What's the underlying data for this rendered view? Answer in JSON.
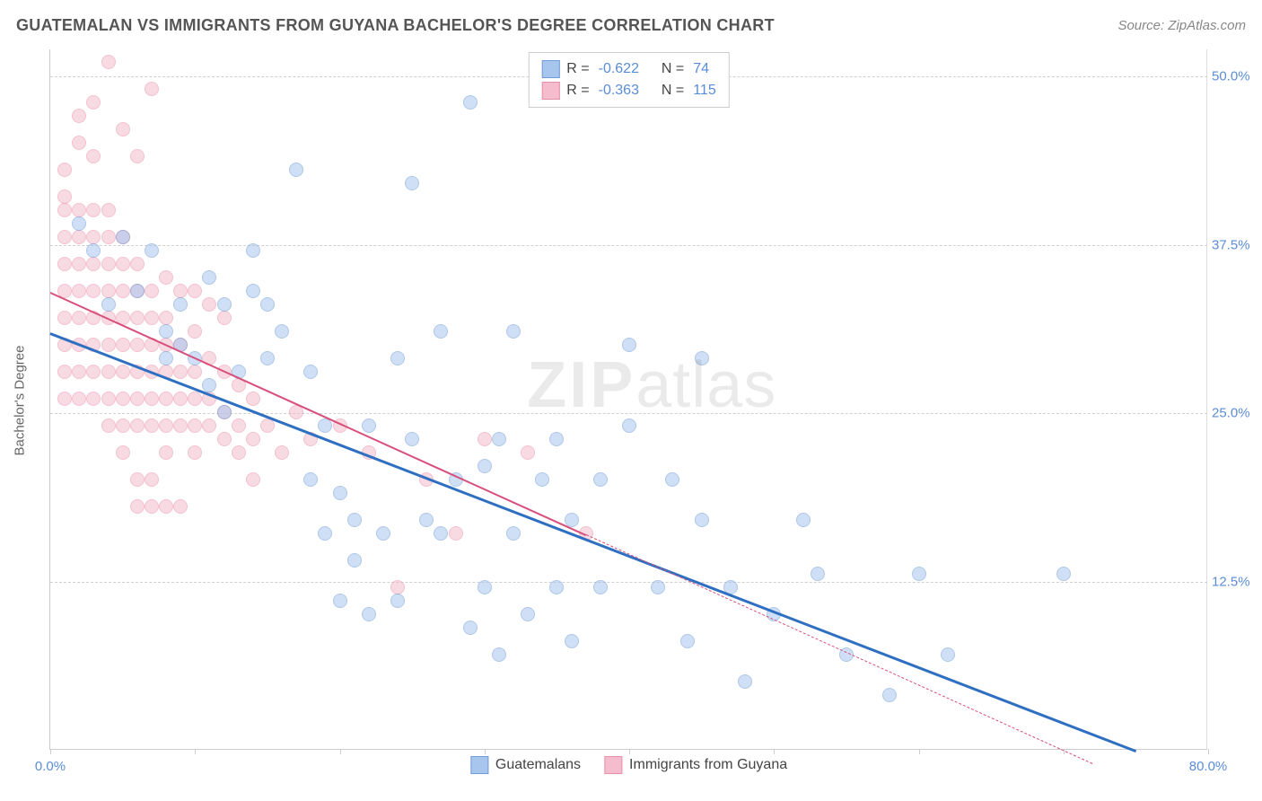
{
  "header": {
    "title": "GUATEMALAN VS IMMIGRANTS FROM GUYANA BACHELOR'S DEGREE CORRELATION CHART",
    "source": "Source: ZipAtlas.com"
  },
  "chart": {
    "type": "scatter",
    "ylabel": "Bachelor's Degree",
    "xlim": [
      0,
      80
    ],
    "ylim": [
      0,
      52
    ],
    "xtick_positions": [
      0,
      10,
      20,
      30,
      40,
      50,
      60,
      70,
      80
    ],
    "xtick_labels": {
      "0": "0.0%",
      "80": "80.0%"
    },
    "ytick_positions": [
      12.5,
      25.0,
      37.5,
      50.0
    ],
    "ytick_labels": [
      "12.5%",
      "25.0%",
      "37.5%",
      "50.0%"
    ],
    "grid_color": "#d0d0d0",
    "axis_color": "#cccccc",
    "background_color": "#ffffff",
    "tick_label_color": "#5b8dd6",
    "axis_label_color": "#666666",
    "marker_radius": 8,
    "marker_opacity": 0.55,
    "watermark": {
      "zip": "ZIP",
      "atlas": "atlas"
    },
    "series": [
      {
        "name": "Guatemalans",
        "fill_color": "#a8c5ed",
        "stroke_color": "#6f9bd8",
        "R": "-0.622",
        "N": "74",
        "trend": {
          "x1": 0,
          "y1": 31,
          "x2": 75,
          "y2": 0,
          "solid_until_x": 75,
          "color": "#2f6fc2",
          "width": 2.5
        },
        "points": [
          [
            2,
            39
          ],
          [
            3,
            37
          ],
          [
            4,
            33
          ],
          [
            5,
            38
          ],
          [
            6,
            34
          ],
          [
            7,
            37
          ],
          [
            8,
            31
          ],
          [
            8,
            29
          ],
          [
            9,
            30
          ],
          [
            9,
            33
          ],
          [
            10,
            29
          ],
          [
            11,
            27
          ],
          [
            11,
            35
          ],
          [
            12,
            25
          ],
          [
            12,
            33
          ],
          [
            13,
            28
          ],
          [
            14,
            37
          ],
          [
            14,
            34
          ],
          [
            15,
            29
          ],
          [
            15,
            33
          ],
          [
            16,
            31
          ],
          [
            17,
            43
          ],
          [
            18,
            28
          ],
          [
            18,
            20
          ],
          [
            19,
            16
          ],
          [
            19,
            24
          ],
          [
            20,
            11
          ],
          [
            20,
            19
          ],
          [
            21,
            14
          ],
          [
            21,
            17
          ],
          [
            22,
            10
          ],
          [
            22,
            24
          ],
          [
            23,
            16
          ],
          [
            24,
            11
          ],
          [
            24,
            29
          ],
          [
            25,
            23
          ],
          [
            25,
            42
          ],
          [
            26,
            17
          ],
          [
            27,
            16
          ],
          [
            27,
            31
          ],
          [
            28,
            20
          ],
          [
            29,
            9
          ],
          [
            29,
            48
          ],
          [
            30,
            21
          ],
          [
            30,
            12
          ],
          [
            31,
            7
          ],
          [
            31,
            23
          ],
          [
            32,
            16
          ],
          [
            32,
            31
          ],
          [
            33,
            10
          ],
          [
            34,
            20
          ],
          [
            35,
            12
          ],
          [
            35,
            23
          ],
          [
            36,
            8
          ],
          [
            36,
            17
          ],
          [
            38,
            20
          ],
          [
            38,
            12
          ],
          [
            40,
            24
          ],
          [
            40,
            30
          ],
          [
            42,
            12
          ],
          [
            43,
            20
          ],
          [
            44,
            8
          ],
          [
            45,
            17
          ],
          [
            45,
            29
          ],
          [
            47,
            12
          ],
          [
            48,
            5
          ],
          [
            50,
            10
          ],
          [
            52,
            17
          ],
          [
            53,
            13
          ],
          [
            55,
            7
          ],
          [
            58,
            4
          ],
          [
            60,
            13
          ],
          [
            62,
            7
          ],
          [
            70,
            13
          ]
        ]
      },
      {
        "name": "Immigrants from Guyana",
        "fill_color": "#f4bccc",
        "stroke_color": "#e88fa8",
        "R": "-0.363",
        "N": "115",
        "trend": {
          "x1": 0,
          "y1": 34,
          "x2": 37,
          "y2": 16,
          "dashed_to_x": 72,
          "dashed_to_y": -1,
          "color": "#d84f7b",
          "width": 2
        },
        "points": [
          [
            1,
            40
          ],
          [
            1,
            38
          ],
          [
            1,
            36
          ],
          [
            1,
            34
          ],
          [
            1,
            32
          ],
          [
            1,
            30
          ],
          [
            1,
            28
          ],
          [
            1,
            26
          ],
          [
            1,
            41
          ],
          [
            1,
            43
          ],
          [
            2,
            40
          ],
          [
            2,
            38
          ],
          [
            2,
            36
          ],
          [
            2,
            34
          ],
          [
            2,
            32
          ],
          [
            2,
            30
          ],
          [
            2,
            28
          ],
          [
            2,
            45
          ],
          [
            2,
            47
          ],
          [
            2,
            26
          ],
          [
            3,
            40
          ],
          [
            3,
            38
          ],
          [
            3,
            36
          ],
          [
            3,
            34
          ],
          [
            3,
            32
          ],
          [
            3,
            30
          ],
          [
            3,
            28
          ],
          [
            3,
            44
          ],
          [
            3,
            48
          ],
          [
            3,
            26
          ],
          [
            4,
            40
          ],
          [
            4,
            38
          ],
          [
            4,
            36
          ],
          [
            4,
            34
          ],
          [
            4,
            32
          ],
          [
            4,
            30
          ],
          [
            4,
            28
          ],
          [
            4,
            51
          ],
          [
            4,
            26
          ],
          [
            4,
            24
          ],
          [
            5,
            38
          ],
          [
            5,
            36
          ],
          [
            5,
            34
          ],
          [
            5,
            32
          ],
          [
            5,
            30
          ],
          [
            5,
            28
          ],
          [
            5,
            26
          ],
          [
            5,
            24
          ],
          [
            5,
            22
          ],
          [
            5,
            46
          ],
          [
            6,
            36
          ],
          [
            6,
            34
          ],
          [
            6,
            32
          ],
          [
            6,
            30
          ],
          [
            6,
            28
          ],
          [
            6,
            26
          ],
          [
            6,
            24
          ],
          [
            6,
            20
          ],
          [
            6,
            18
          ],
          [
            6,
            44
          ],
          [
            7,
            34
          ],
          [
            7,
            32
          ],
          [
            7,
            30
          ],
          [
            7,
            28
          ],
          [
            7,
            26
          ],
          [
            7,
            24
          ],
          [
            7,
            20
          ],
          [
            7,
            18
          ],
          [
            7,
            49
          ],
          [
            8,
            32
          ],
          [
            8,
            30
          ],
          [
            8,
            28
          ],
          [
            8,
            26
          ],
          [
            8,
            24
          ],
          [
            8,
            22
          ],
          [
            8,
            18
          ],
          [
            8,
            35
          ],
          [
            9,
            30
          ],
          [
            9,
            28
          ],
          [
            9,
            26
          ],
          [
            9,
            24
          ],
          [
            9,
            34
          ],
          [
            9,
            18
          ],
          [
            10,
            28
          ],
          [
            10,
            26
          ],
          [
            10,
            24
          ],
          [
            10,
            22
          ],
          [
            10,
            31
          ],
          [
            10,
            34
          ],
          [
            11,
            26
          ],
          [
            11,
            24
          ],
          [
            11,
            29
          ],
          [
            11,
            33
          ],
          [
            12,
            25
          ],
          [
            12,
            28
          ],
          [
            12,
            23
          ],
          [
            12,
            32
          ],
          [
            13,
            24
          ],
          [
            13,
            27
          ],
          [
            13,
            22
          ],
          [
            14,
            23
          ],
          [
            14,
            26
          ],
          [
            14,
            20
          ],
          [
            15,
            24
          ],
          [
            16,
            22
          ],
          [
            17,
            25
          ],
          [
            18,
            23
          ],
          [
            20,
            24
          ],
          [
            22,
            22
          ],
          [
            24,
            12
          ],
          [
            26,
            20
          ],
          [
            28,
            16
          ],
          [
            30,
            23
          ],
          [
            33,
            22
          ],
          [
            37,
            16
          ]
        ]
      }
    ],
    "legend_bottom": [
      {
        "label": "Guatemalans",
        "swatch_fill": "#a8c5ed",
        "swatch_border": "#6f9bd8"
      },
      {
        "label": "Immigrants from Guyana",
        "swatch_fill": "#f4bccc",
        "swatch_border": "#e88fa8"
      }
    ]
  }
}
